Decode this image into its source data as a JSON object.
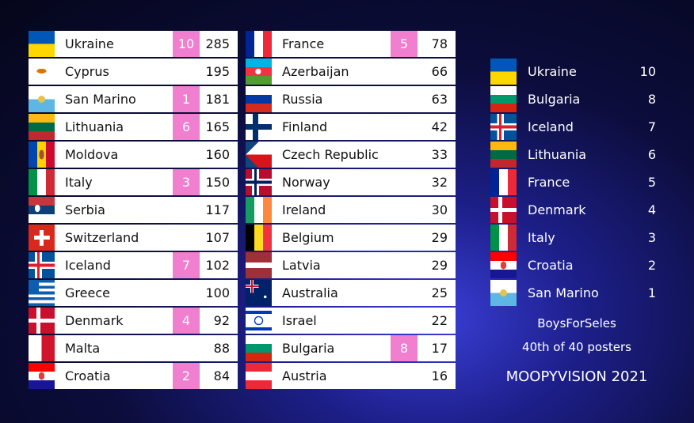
{
  "scoreboard": {
    "columns": [
      [
        {
          "country": "Ukraine",
          "points": 10,
          "total": 285
        },
        {
          "country": "Cyprus",
          "points": null,
          "total": 195
        },
        {
          "country": "San Marino",
          "points": 1,
          "total": 181
        },
        {
          "country": "Lithuania",
          "points": 6,
          "total": 165
        },
        {
          "country": "Moldova",
          "points": null,
          "total": 160
        },
        {
          "country": "Italy",
          "points": 3,
          "total": 150
        },
        {
          "country": "Serbia",
          "points": null,
          "total": 117
        },
        {
          "country": "Switzerland",
          "points": null,
          "total": 107
        },
        {
          "country": "Iceland",
          "points": 7,
          "total": 102
        },
        {
          "country": "Greece",
          "points": null,
          "total": 100
        },
        {
          "country": "Denmark",
          "points": 4,
          "total": 92
        },
        {
          "country": "Malta",
          "points": null,
          "total": 88
        },
        {
          "country": "Croatia",
          "points": 2,
          "total": 84
        }
      ],
      [
        {
          "country": "France",
          "points": 5,
          "total": 78
        },
        {
          "country": "Azerbaijan",
          "points": null,
          "total": 66
        },
        {
          "country": "Russia",
          "points": null,
          "total": 63
        },
        {
          "country": "Finland",
          "points": null,
          "total": 42
        },
        {
          "country": "Czech Republic",
          "points": null,
          "total": 33
        },
        {
          "country": "Norway",
          "points": null,
          "total": 32
        },
        {
          "country": "Ireland",
          "points": null,
          "total": 30
        },
        {
          "country": "Belgium",
          "points": null,
          "total": 29
        },
        {
          "country": "Latvia",
          "points": null,
          "total": 29
        },
        {
          "country": "Australia",
          "points": null,
          "total": 25
        },
        {
          "country": "Israel",
          "points": null,
          "total": 22
        },
        {
          "country": "Bulgaria",
          "points": 8,
          "total": 17
        },
        {
          "country": "Austria",
          "points": null,
          "total": 16
        }
      ]
    ]
  },
  "votes": [
    {
      "country": "Ukraine",
      "points": 10
    },
    {
      "country": "Bulgaria",
      "points": 8
    },
    {
      "country": "Iceland",
      "points": 7
    },
    {
      "country": "Lithuania",
      "points": 6
    },
    {
      "country": "France",
      "points": 5
    },
    {
      "country": "Denmark",
      "points": 4
    },
    {
      "country": "Italy",
      "points": 3
    },
    {
      "country": "Croatia",
      "points": 2
    },
    {
      "country": "San Marino",
      "points": 1
    }
  ],
  "footer": {
    "user": "BoysForSeles",
    "rank": "40th of 40 posters",
    "event": "MOOPYVISION 2021"
  }
}
